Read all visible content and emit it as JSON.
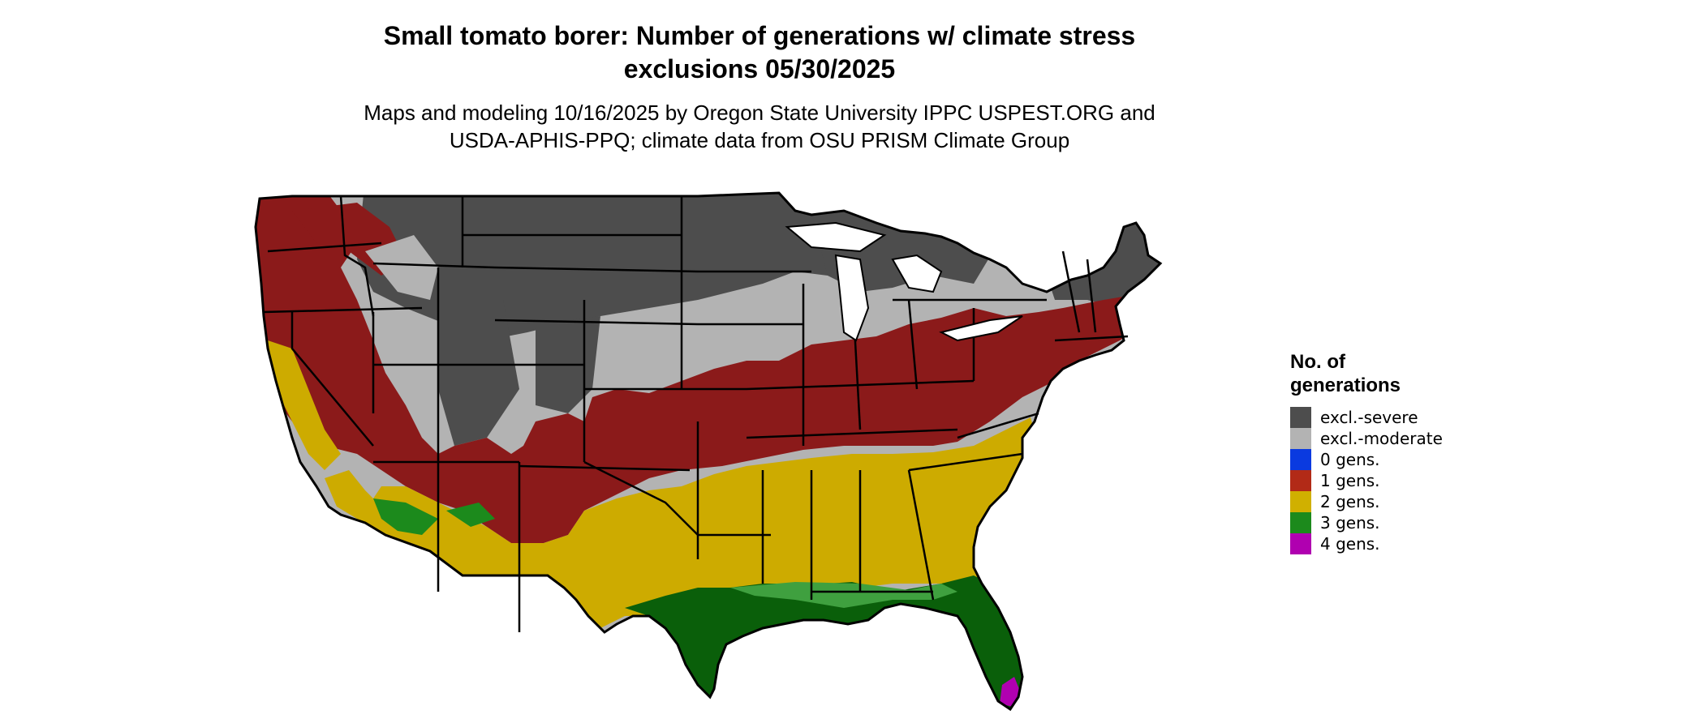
{
  "title": {
    "line1": "Small tomato borer: Number of generations w/ climate stress",
    "line2": "exclusions 05/30/2025"
  },
  "subtitle": {
    "line1": "Maps and modeling 10/16/2025 by Oregon State University IPPC USPEST.ORG and",
    "line2": "USDA-APHIS-PPQ; climate data from OSU PRISM Climate Group"
  },
  "legend": {
    "title_line1": "No. of",
    "title_line2": "generations",
    "items": [
      {
        "label": "excl.-severe",
        "color": "#4d4d4d"
      },
      {
        "label": "excl.-moderate",
        "color": "#b3b3b3"
      },
      {
        "label": "0 gens.",
        "color": "#0a3ae0"
      },
      {
        "label": "1 gens.",
        "color": "#b22a17"
      },
      {
        "label": "2 gens.",
        "color": "#d0b000"
      },
      {
        "label": "3 gens.",
        "color": "#1c8a1c"
      },
      {
        "label": "4 gens.",
        "color": "#b000b0"
      }
    ]
  },
  "map": {
    "region": "contiguous-united-states",
    "colors": {
      "excl_severe": "#4d4d4d",
      "excl_moderate": "#b3b3b3",
      "gens_1": "#8b1a1a",
      "gens_2": "#cdab00",
      "gens_3_dark": "#0a5f0a",
      "gens_3_light": "#3fa03f",
      "gens_4": "#b000b0",
      "state_border": "#000000"
    }
  }
}
